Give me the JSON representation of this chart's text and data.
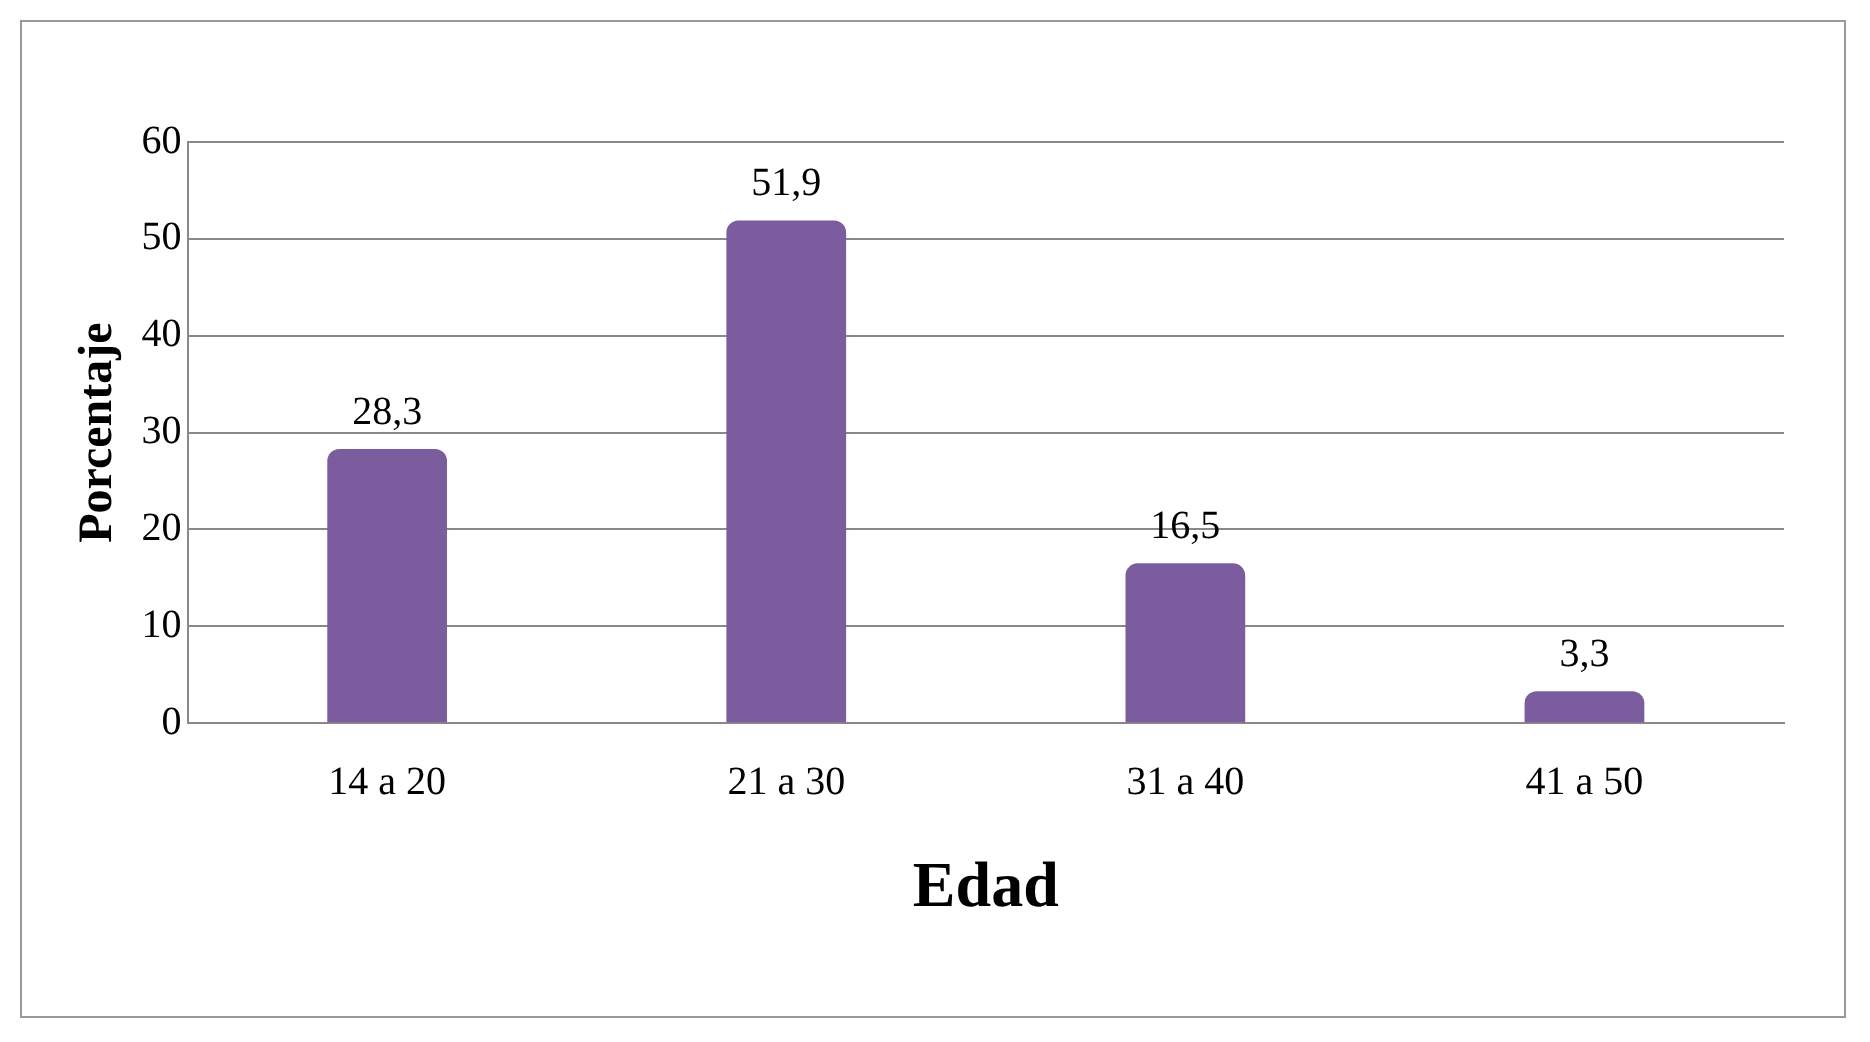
{
  "chart_data": {
    "type": "bar",
    "xlabel": "Edad",
    "ylabel": "Porcentaje",
    "categories": [
      "14 a 20",
      "21 a 30",
      "31 a 40",
      "41 a 50"
    ],
    "values": [
      28.3,
      51.9,
      16.5,
      3.3
    ],
    "value_labels": [
      "28,3",
      "51,9",
      "16,5",
      "3,3"
    ],
    "color": "#7b5c9e",
    "ylim": [
      0,
      60
    ],
    "yticks": [
      0,
      10,
      20,
      30,
      40,
      50,
      60
    ],
    "grid": "y"
  }
}
